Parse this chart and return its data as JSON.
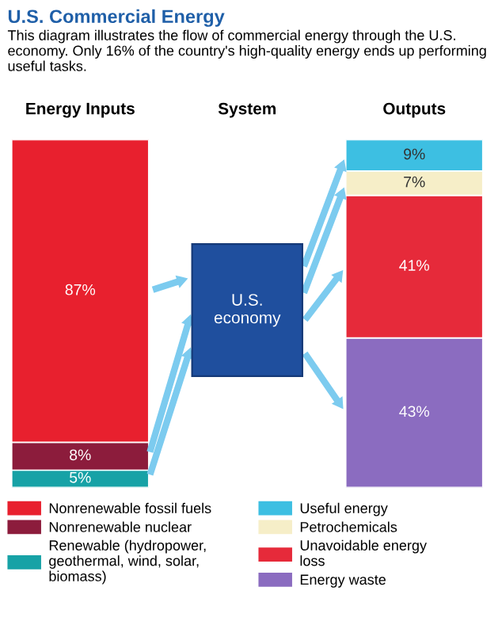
{
  "chart_data": {
    "type": "bar",
    "stacked": true,
    "title": "U.S. Commercial Energy",
    "subtitle": "This diagram illustrates the flow of commercial energy through the U.S. economy. Only 16% of the country's high-quality energy ends up performing useful tasks.",
    "categories": [
      "Energy Inputs",
      "System",
      "Outputs"
    ],
    "series": [
      {
        "name": "Renewable (hydropower,\ngeothermal, wind, solar,\nbiomass)",
        "color": "#17a2a6",
        "values": [
          5,
          null,
          null
        ],
        "value_labels": [
          "5%",
          null,
          null
        ]
      },
      {
        "name": "Nonrenewable nuclear",
        "color": "#8c1c3c",
        "values": [
          8,
          null,
          null
        ],
        "value_labels": [
          "8%",
          null,
          null
        ]
      },
      {
        "name": "Nonrenewable fossil fuels",
        "color": "#e8202e",
        "values": [
          87,
          null,
          null
        ],
        "value_labels": [
          "87%",
          null,
          null
        ]
      },
      {
        "name": "Energy waste",
        "color": "#8b6cc0",
        "values": [
          null,
          null,
          43
        ],
        "value_labels": [
          null,
          null,
          "43%"
        ]
      },
      {
        "name": "Unavoidable energy\nloss",
        "color": "#e62a3a",
        "values": [
          null,
          null,
          41
        ],
        "value_labels": [
          null,
          null,
          "41%"
        ]
      },
      {
        "name": "Petrochemicals",
        "color": "#f6eec8",
        "values": [
          null,
          null,
          7
        ],
        "value_labels": [
          null,
          null,
          "7%"
        ]
      },
      {
        "name": "Useful energy",
        "color": "#3dbfe2",
        "values": [
          null,
          null,
          9
        ],
        "value_labels": [
          null,
          null,
          "9%"
        ]
      }
    ],
    "annotations": [
      "U.S.\neconomy"
    ],
    "legend": "bottom",
    "tick_labels": "x",
    "grid": false
  }
}
